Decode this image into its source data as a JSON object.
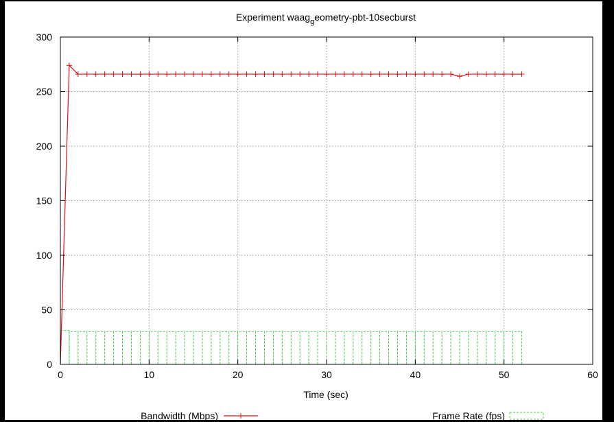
{
  "chart_data": {
    "type": "line",
    "title": {
      "main": "Experiment waag",
      "subscript": "g",
      "rest": "eometry-pbt-10secburst"
    },
    "xlabel": "Time (sec)",
    "ylabel": "",
    "xlim": [
      0,
      60
    ],
    "ylim": [
      0,
      300
    ],
    "xticks": [
      "0",
      "10",
      "20",
      "30",
      "40",
      "50",
      "60"
    ],
    "yticks": [
      "0",
      "50",
      "100",
      "150",
      "200",
      "250",
      "300"
    ],
    "grid": true,
    "legend_placement": "bottom",
    "series": [
      {
        "name": "Bandwidth (Mbps)",
        "style": "line-with-plus-markers",
        "color": "#e01010",
        "x": [
          0,
          1,
          2,
          3,
          4,
          5,
          6,
          7,
          8,
          9,
          10,
          11,
          12,
          13,
          14,
          15,
          16,
          17,
          18,
          19,
          20,
          21,
          22,
          23,
          24,
          25,
          26,
          27,
          28,
          29,
          30,
          31,
          32,
          33,
          34,
          35,
          36,
          37,
          38,
          39,
          40,
          41,
          42,
          43,
          44,
          45,
          46,
          47,
          48,
          49,
          50,
          51,
          52
        ],
        "y": [
          0,
          274,
          266,
          266,
          266,
          266,
          266,
          266,
          266,
          266,
          266,
          266,
          266,
          266,
          266,
          266,
          266,
          266,
          266,
          266,
          266,
          266,
          266,
          266,
          266,
          266,
          266,
          266,
          266,
          266,
          266,
          266,
          266,
          266,
          266,
          266,
          266,
          266,
          266,
          266,
          266,
          266,
          266,
          266,
          266,
          264,
          266,
          266,
          266,
          266,
          266,
          266,
          266
        ]
      },
      {
        "name": "Frame Rate (fps)",
        "style": "dashed-steps",
        "color": "#44cc44",
        "x": [
          0,
          1,
          2,
          3,
          4,
          5,
          6,
          7,
          8,
          9,
          10,
          11,
          12,
          13,
          14,
          15,
          16,
          17,
          18,
          19,
          20,
          21,
          22,
          23,
          24,
          25,
          26,
          27,
          28,
          29,
          30,
          31,
          32,
          33,
          34,
          35,
          36,
          37,
          38,
          39,
          40,
          41,
          42,
          43,
          44,
          45,
          46,
          47,
          48,
          49,
          50,
          51,
          52
        ],
        "y": [
          0,
          31,
          30,
          30,
          30,
          30,
          30,
          30,
          30,
          30,
          30,
          30,
          30,
          30,
          30,
          30,
          30,
          30,
          30,
          30,
          30,
          30,
          30,
          30,
          30,
          30,
          30,
          30,
          30,
          30,
          30,
          30,
          30,
          30,
          30,
          30,
          30,
          30,
          30,
          30,
          30,
          30,
          30,
          30,
          30,
          30,
          30,
          30,
          30,
          30,
          30,
          30,
          30
        ]
      }
    ]
  }
}
